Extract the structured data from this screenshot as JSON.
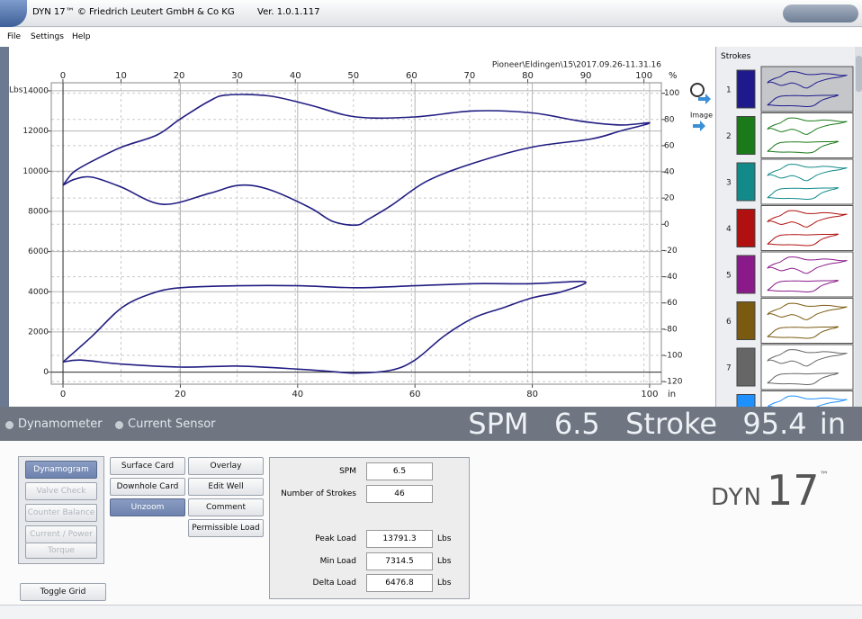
{
  "window": {
    "title": "DYN 17™ © Friedrich Leutert GmbH & Co KG",
    "version": "Ver. 1.0.1.117"
  },
  "menu": [
    "File",
    "Settings",
    "Help"
  ],
  "chart_data": {
    "type": "line",
    "caption": "Pioneer\\Eldingen\\15\\2017.09.26-11.31.16",
    "y_label": "Lbs",
    "x_label": "in",
    "x2_label": "%",
    "image_button": "Image",
    "xlim": [
      -2,
      102
    ],
    "xticks": [
      0,
      20,
      40,
      60,
      80,
      100
    ],
    "x2lim": [
      -2,
      103
    ],
    "x2ticks": [
      0,
      10,
      20,
      30,
      40,
      50,
      60,
      70,
      80,
      90,
      100
    ],
    "ylim": [
      -600,
      14400
    ],
    "yticks": [
      0,
      2000,
      4000,
      6000,
      8000,
      10000,
      12000,
      14000
    ],
    "y2lim": [
      -122,
      108
    ],
    "y2ticks": [
      100,
      80,
      60,
      40,
      20,
      0,
      -20,
      -40,
      -60,
      -80,
      -100,
      -120
    ],
    "grid": true,
    "series": [
      {
        "color": "#221d82",
        "x": [
          0,
          1,
          2,
          5,
          10,
          16,
          20,
          25,
          28,
          35,
          42,
          50,
          60,
          70,
          80,
          88,
          95,
          100,
          95,
          90,
          80,
          70,
          62,
          56,
          52,
          50,
          46,
          42,
          35,
          30,
          25,
          17,
          10,
          5,
          2,
          0
        ],
        "values": [
          9300,
          9700,
          10000,
          10500,
          11200,
          11800,
          12600,
          13500,
          13791.3,
          13750,
          13300,
          12700,
          12700,
          13000,
          12900,
          12500,
          12300,
          12400,
          12000,
          11600,
          11200,
          10400,
          9500,
          8300,
          7600,
          7314.5,
          7500,
          8200,
          9100,
          9300,
          8900,
          8350,
          9200,
          9700,
          9600,
          9300
        ]
      },
      {
        "color": "#221d82",
        "x": [
          0,
          5,
          10,
          15,
          20,
          30,
          40,
          50,
          60,
          70,
          80,
          89,
          85,
          80,
          75,
          70,
          65,
          60,
          56,
          50,
          45,
          40,
          30,
          20,
          10,
          3,
          0
        ],
        "values": [
          500,
          1800,
          3200,
          3900,
          4200,
          4300,
          4300,
          4200,
          4300,
          4400,
          4400,
          4500,
          4000,
          3700,
          3200,
          2700,
          1800,
          600,
          100,
          -50,
          50,
          150,
          300,
          250,
          400,
          600,
          500
        ]
      }
    ]
  },
  "strokes": {
    "title": "Strokes",
    "items": [
      {
        "number": 1,
        "color": "#1e1a8c"
      },
      {
        "number": 2,
        "color": "#1a7a1a"
      },
      {
        "number": 3,
        "color": "#138a8a"
      },
      {
        "number": 4,
        "color": "#b01010"
      },
      {
        "number": 5,
        "color": "#8a1a8a"
      },
      {
        "number": 6,
        "color": "#7a5a10"
      },
      {
        "number": 7,
        "color": "#666666"
      },
      {
        "color": "#1e90ff"
      }
    ]
  },
  "sensor_options": [
    "Dynamometer",
    "Current Sensor"
  ],
  "status": {
    "spm_label": "SPM",
    "spm": 6.5,
    "stroke_label": "Stroke",
    "stroke": 95.4,
    "stroke_unit": "in"
  },
  "modes": [
    "Dynamogram",
    "Valve Check",
    "Counter Balance",
    "Current / Power",
    "Torque"
  ],
  "actions": [
    "Surface Card",
    "Downhole Card",
    "Unzoom",
    "Overlay",
    "Edit Well",
    "Comment",
    "Permissible Load",
    "Toggle Grid"
  ],
  "readings": [
    {
      "label": "SPM",
      "value": 6.5
    },
    {
      "label": "Number of Strokes",
      "value": 46
    },
    {
      "label": "Peak Load",
      "value": 13791.3,
      "unit": "Lbs"
    },
    {
      "label": "Min Load",
      "value": 7314.5,
      "unit": "Lbs"
    },
    {
      "label": "Delta Load",
      "value": 6476.8,
      "unit": "Lbs"
    }
  ],
  "logo": {
    "name": "DYN",
    "number": 17,
    "mark": "™"
  }
}
